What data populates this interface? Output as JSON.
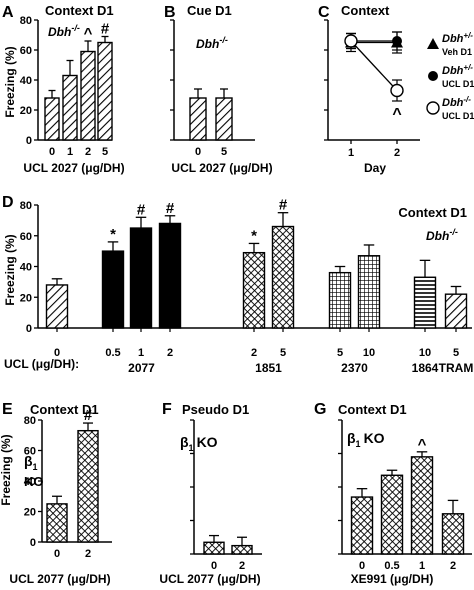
{
  "figure": {
    "panels": {
      "A": {
        "letter": "A",
        "title": "Context D1",
        "genotype": "Dbh",
        "genotype_sup": "-/-",
        "ylabel": "Freezing (%)",
        "xlabel": "UCL 2027 (μg/DH)",
        "yticks": [
          "0",
          "20",
          "40",
          "60",
          "80"
        ]
      },
      "B": {
        "letter": "B",
        "title": "Cue D1",
        "genotype": "Dbh",
        "genotype_sup": "-/-",
        "xlabel": "UCL 2027 (μg/DH)"
      },
      "C": {
        "letter": "C",
        "title": "Context",
        "xlabel": "Day",
        "legend": [
          {
            "name": "Dbh",
            "sup": "+/-",
            "sub": "Veh D1",
            "marker": "triangle"
          },
          {
            "name": "Dbh",
            "sup": "+/-",
            "sub": "UCL D1",
            "marker": "filled-circle"
          },
          {
            "name": "Dbh",
            "sup": "-/-",
            "sub": "UCL D1",
            "marker": "open-circle"
          }
        ]
      },
      "D": {
        "letter": "D",
        "title": "Context D1",
        "genotype": "Dbh",
        "genotype_sup": "-/-",
        "ylabel": "Freezing (%)",
        "yticks": [
          "0",
          "20",
          "40",
          "60",
          "80"
        ],
        "row_label": "UCL (μg/DH):",
        "groups": [
          {
            "doses": [
              "0"
            ],
            "drug": ""
          },
          {
            "doses": [
              "0.5",
              "1",
              "2"
            ],
            "drug": "2077"
          },
          {
            "doses": [
              "2",
              "5"
            ],
            "drug": "1851"
          },
          {
            "doses": [
              "5",
              "10"
            ],
            "drug": "2370"
          },
          {
            "doses": [
              "10"
            ],
            "drug": "1864"
          },
          {
            "doses": [
              "5"
            ],
            "drug": "TRAM"
          }
        ]
      },
      "E": {
        "letter": "E",
        "title": "Context D1",
        "ko": "β",
        "ko_sub": "1",
        "ko_text": "KO",
        "ylabel": "Freezing (%)",
        "xlabel": "UCL 2077 (μg/DH)",
        "yticks": [
          "0",
          "20",
          "40",
          "60",
          "80"
        ]
      },
      "F": {
        "letter": "F",
        "title": "Pseudo D1",
        "ko": "β",
        "ko_sub": "1",
        "ko_text": "KO",
        "xlabel": "UCL 2077 (μg/DH)"
      },
      "G": {
        "letter": "G",
        "title": "Context D1",
        "ko": "β",
        "ko_sub": "1",
        "ko_text": "KO",
        "xlabel": "XE991 (μg/DH)"
      }
    }
  },
  "chart_data": [
    {
      "panel": "A",
      "type": "bar",
      "categories": [
        "0",
        "1",
        "2",
        "5"
      ],
      "values": [
        28,
        43,
        59,
        65
      ],
      "errors": [
        5,
        10,
        7,
        4
      ],
      "ylim": [
        0,
        80
      ],
      "annotations": [
        "",
        "",
        "^",
        "#"
      ],
      "pattern": "diagonal"
    },
    {
      "panel": "B",
      "type": "bar",
      "categories": [
        "0",
        "5"
      ],
      "values": [
        28,
        28
      ],
      "errors": [
        6,
        6
      ],
      "ylim": [
        0,
        80
      ],
      "annotations": [
        "",
        ""
      ],
      "pattern": "diagonal"
    },
    {
      "panel": "C",
      "type": "line",
      "x": [
        1,
        2
      ],
      "xlim": [
        0.5,
        2.5
      ],
      "ylim": [
        0,
        80
      ],
      "annotations": [
        {
          "series": 2,
          "x": 2,
          "text": "^"
        }
      ],
      "series": [
        {
          "name": "Dbh+/- Veh D1",
          "marker": "triangle",
          "values": [
            65,
            65
          ],
          "errors": [
            6,
            7
          ]
        },
        {
          "name": "Dbh+/- UCL D1",
          "marker": "filled-circle",
          "values": [
            66,
            66
          ],
          "errors": [
            5,
            6
          ]
        },
        {
          "name": "Dbh-/- UCL D1",
          "marker": "open-circle",
          "values": [
            66,
            33
          ],
          "errors": [
            5,
            7
          ]
        }
      ]
    },
    {
      "panel": "D",
      "type": "bar",
      "ylim": [
        0,
        80
      ],
      "bars": [
        {
          "group": 0,
          "dose": "0",
          "value": 28,
          "error": 4,
          "pattern": "diagonal",
          "annot": ""
        },
        {
          "group": 1,
          "dose": "0.5",
          "value": 50,
          "error": 6,
          "pattern": "solid",
          "annot": "*"
        },
        {
          "group": 1,
          "dose": "1",
          "value": 65,
          "error": 7,
          "pattern": "solid",
          "annot": "#"
        },
        {
          "group": 1,
          "dose": "2",
          "value": 68,
          "error": 5,
          "pattern": "solid",
          "annot": "#"
        },
        {
          "group": 2,
          "dose": "2",
          "value": 49,
          "error": 6,
          "pattern": "crosshatch",
          "annot": "*"
        },
        {
          "group": 2,
          "dose": "5",
          "value": 66,
          "error": 9,
          "pattern": "crosshatch",
          "annot": "#"
        },
        {
          "group": 3,
          "dose": "5",
          "value": 36,
          "error": 4,
          "pattern": "grid",
          "annot": ""
        },
        {
          "group": 3,
          "dose": "10",
          "value": 47,
          "error": 7,
          "pattern": "grid",
          "annot": ""
        },
        {
          "group": 4,
          "dose": "10",
          "value": 33,
          "error": 11,
          "pattern": "horizontal",
          "annot": ""
        },
        {
          "group": 5,
          "dose": "5",
          "value": 22,
          "error": 5,
          "pattern": "diagonal",
          "annot": ""
        }
      ]
    },
    {
      "panel": "E",
      "type": "bar",
      "categories": [
        "0",
        "2"
      ],
      "values": [
        25,
        73
      ],
      "errors": [
        5,
        5
      ],
      "ylim": [
        0,
        80
      ],
      "annotations": [
        "",
        "#"
      ],
      "pattern": "crosshatch"
    },
    {
      "panel": "F",
      "type": "bar",
      "categories": [
        "0",
        "2"
      ],
      "values": [
        7,
        5
      ],
      "errors": [
        4,
        5
      ],
      "ylim": [
        0,
        80
      ],
      "annotations": [
        "",
        ""
      ],
      "pattern": "crosshatch"
    },
    {
      "panel": "G",
      "type": "bar",
      "categories": [
        "0",
        "0.5",
        "1",
        "2"
      ],
      "values": [
        34,
        47,
        58,
        24
      ],
      "errors": [
        5,
        3,
        3,
        8
      ],
      "ylim": [
        0,
        80
      ],
      "annotations": [
        "",
        "",
        "^",
        ""
      ],
      "pattern": "crosshatch"
    }
  ]
}
